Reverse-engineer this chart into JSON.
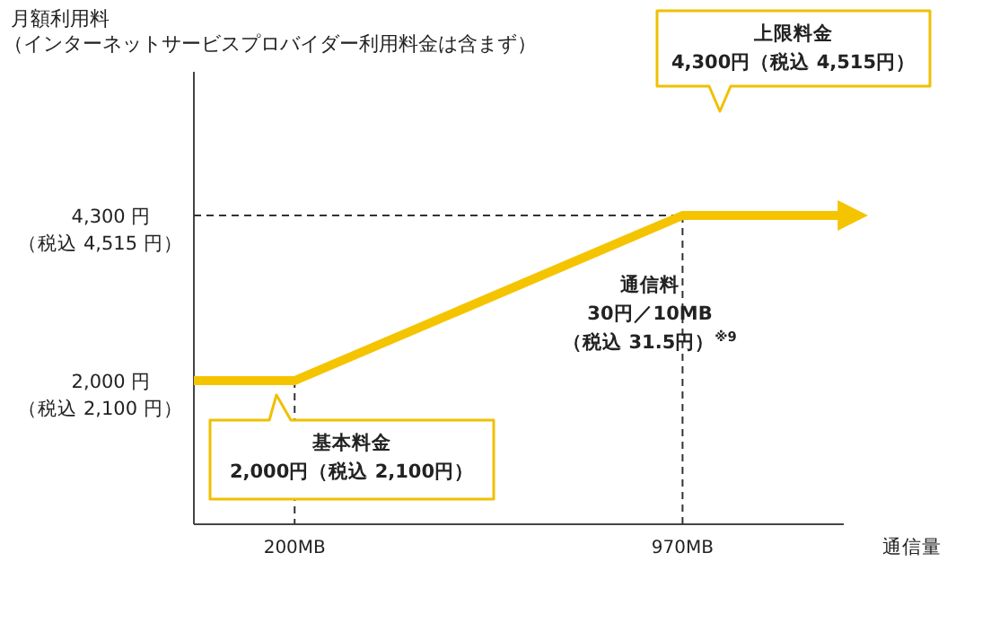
{
  "chart_data": {
    "type": "line",
    "ylabel": "月額利用料（インターネットサービスプロバイダー利用料金は含まず）",
    "xlabel": "通信量",
    "x": [
      0,
      200,
      970,
      1290
    ],
    "series": [
      {
        "color": "#f5c400",
        "values": [
          2000,
          2000,
          4300,
          4300
        ]
      }
    ],
    "xlim": [
      0,
      1290
    ],
    "ylim": [
      0,
      6300
    ],
    "xticks": [
      {
        "value": 200,
        "label": "200MB"
      },
      {
        "value": 970,
        "label": "970MB"
      }
    ],
    "yticks": [
      {
        "value": 2000,
        "label": "2,000 円"
      },
      {
        "value": 4300,
        "label": "4,300 円"
      }
    ],
    "ref_lines": [
      {
        "axis": "y",
        "value": 4300,
        "line_style": "dashed",
        "color": "#333333"
      },
      {
        "axis": "x",
        "value": 200,
        "line_style": "dashed",
        "color": "#333333"
      },
      {
        "axis": "x",
        "value": 970,
        "line_style": "dashed",
        "color": "#333333"
      }
    ],
    "annotations": [
      "上限料金\n4,300円（税込 4,515円）",
      "通信料\n30円／10MB\n（税込 31.5円）$^{※9}$",
      "基本料金\n2,000円（税込 2,100円）",
      "（税込 4,515 円）",
      "（税込 2,100 円）"
    ],
    "grid": false,
    "marker": "none",
    "line_style": "solid"
  }
}
